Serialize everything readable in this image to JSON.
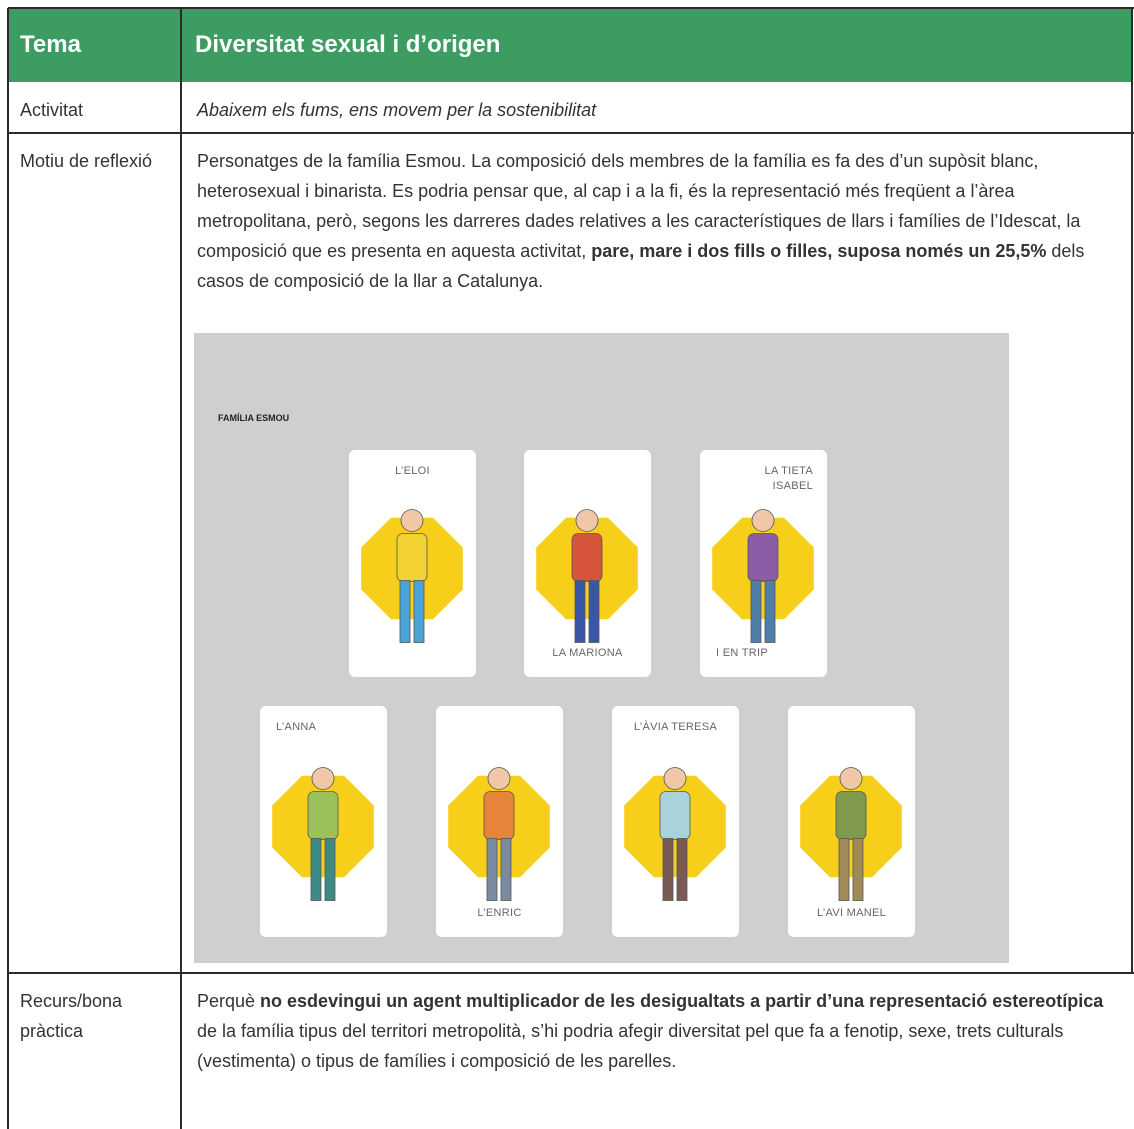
{
  "header": {
    "label": "Tema",
    "title": "Diversitat sexual i d’origen"
  },
  "rows": [
    {
      "label": "Activitat",
      "segments": [
        {
          "text": "Abaixem els fums, ens movem per la sostenibilitat",
          "italic": true
        }
      ]
    },
    {
      "label": "Motiu de reflexió",
      "segments": [
        {
          "text": "Personatges de la família Esmou. La composició dels membres de la família es fa des d’un supòsit blanc, heterosexual i binarista. Es podria pensar que, al cap i a la fi, és la representació més freqüent a l’àrea metropolitana, però, segons les darreres dades relatives a les característiques de llars i famílies de l’Idescat, la composició que es presenta en aquesta activitat, "
        },
        {
          "text": "pare, mare i dos fills o filles, suposa només un 25,5%",
          "bold": true
        },
        {
          "text": " dels casos de composició de la llar a Catalunya."
        }
      ],
      "figure": {
        "title": "FAMÍLIA ESMOU",
        "cards": [
          {
            "labels": [
              "L’ELOI"
            ]
          },
          {
            "labels": [
              "LA MARIONA"
            ]
          },
          {
            "labels": [
              "LA TIETA ISABEL",
              "I EN TRIP"
            ]
          },
          {
            "labels": [
              "L’ANNA"
            ]
          },
          {
            "labels": [
              "L’ENRIC"
            ]
          },
          {
            "labels": [
              "L’ÀVIA TERESA"
            ]
          },
          {
            "labels": [
              "L’AVI MANEL"
            ]
          }
        ]
      }
    },
    {
      "label": "Recurs/bona pràctica",
      "segments": [
        {
          "text": "Perquè "
        },
        {
          "text": "no esdevingui un agent multiplicador de les desigualtats a partir d’una representació estereotípica",
          "bold": true
        },
        {
          "text": " de la família tipus del territori metropolità, s’hi podria afegir diversitat pel que fa a fenotip, sexe, trets culturals (vestimenta) o tipus de famílies i composició de les parelles."
        }
      ]
    }
  ]
}
